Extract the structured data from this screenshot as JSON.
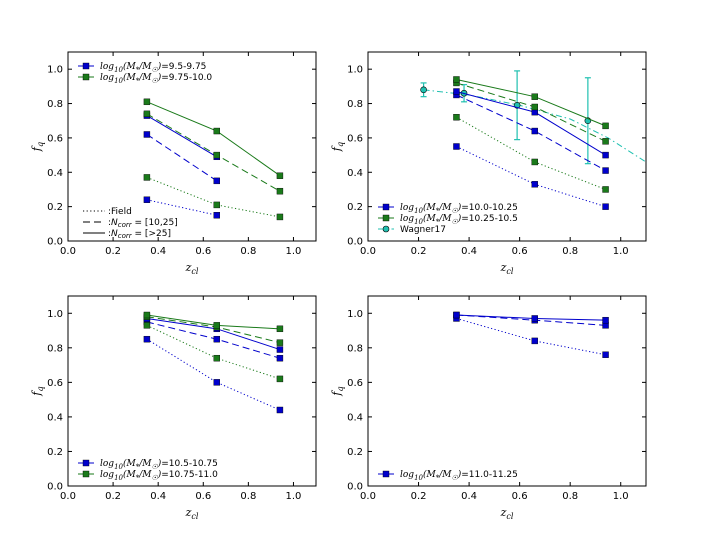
{
  "colors": {
    "blue": "#0000cc",
    "green": "#1a7a1a",
    "cyan": "#20c0b0",
    "axis": "#000000"
  },
  "chart_data": [
    {
      "type": "line",
      "panel": "top-left",
      "xlabel": "z_cl",
      "ylabel": "f_q",
      "xlim": [
        0.0,
        1.1
      ],
      "ylim": [
        0.0,
        1.1
      ],
      "xticks": [
        0.0,
        0.2,
        0.4,
        0.6,
        0.8,
        1.0
      ],
      "yticks": [
        0.0,
        0.2,
        0.4,
        0.6,
        0.8,
        1.0
      ],
      "x": [
        0.35,
        0.66,
        0.94
      ],
      "series": [
        {
          "name": "log10(M*/M☉)=9.5-9.75",
          "color": "blue",
          "style": "dotted",
          "values": [
            0.24,
            0.15,
            null
          ]
        },
        {
          "name": "log10(M*/M☉)=9.5-9.75",
          "color": "blue",
          "style": "dashed",
          "values": [
            0.62,
            0.35,
            null
          ]
        },
        {
          "name": "log10(M*/M☉)=9.5-9.75",
          "color": "blue",
          "style": "solid",
          "values": [
            0.73,
            0.49,
            null
          ]
        },
        {
          "name": "log10(M*/M☉)=9.75-10.0",
          "color": "green",
          "style": "dotted",
          "values": [
            0.37,
            0.21,
            0.14
          ]
        },
        {
          "name": "log10(M*/M☉)=9.75-10.0",
          "color": "green",
          "style": "dashed",
          "values": [
            0.74,
            0.5,
            0.29
          ]
        },
        {
          "name": "log10(M*/M☉)=9.75-10.0",
          "color": "green",
          "style": "solid",
          "values": [
            0.81,
            0.64,
            0.38
          ]
        }
      ],
      "legend": {
        "position": "top-left",
        "entries": [
          {
            "color": "blue",
            "math": "log10(M*/M☉)",
            "text": "=9.5-9.75"
          },
          {
            "color": "green",
            "math": "log10(M*/M☉)",
            "text": "=9.75-10.0"
          }
        ]
      },
      "style_legend": {
        "position": "bottom-left",
        "entries": [
          {
            "style": "dotted",
            "text": ":Field"
          },
          {
            "style": "dashed",
            "text": ":N_corr = [10,25]"
          },
          {
            "style": "solid",
            "text": ":N_corr = [>25]"
          }
        ]
      }
    },
    {
      "type": "line",
      "panel": "top-right",
      "xlabel": "z_cl",
      "ylabel": "f_q",
      "xlim": [
        0.0,
        1.1
      ],
      "ylim": [
        0.0,
        1.1
      ],
      "xticks": [
        0.0,
        0.2,
        0.4,
        0.6,
        0.8,
        1.0
      ],
      "yticks": [
        0.0,
        0.2,
        0.4,
        0.6,
        0.8,
        1.0
      ],
      "x": [
        0.35,
        0.66,
        0.94
      ],
      "series": [
        {
          "name": "log10(M*/M☉)=10.0-10.25",
          "color": "blue",
          "style": "dotted",
          "values": [
            0.55,
            0.33,
            0.2
          ]
        },
        {
          "name": "log10(M*/M☉)=10.0-10.25",
          "color": "blue",
          "style": "dashed",
          "values": [
            0.85,
            0.64,
            0.41
          ]
        },
        {
          "name": "log10(M*/M☉)=10.0-10.25",
          "color": "blue",
          "style": "solid",
          "values": [
            0.87,
            0.75,
            0.5
          ]
        },
        {
          "name": "log10(M*/M☉)=10.25-10.5",
          "color": "green",
          "style": "dotted",
          "values": [
            0.72,
            0.46,
            0.3
          ]
        },
        {
          "name": "log10(M*/M☉)=10.25-10.5",
          "color": "green",
          "style": "dashed",
          "values": [
            0.92,
            0.78,
            0.58
          ]
        },
        {
          "name": "log10(M*/M☉)=10.25-10.5",
          "color": "green",
          "style": "solid",
          "values": [
            0.94,
            0.84,
            0.67
          ]
        }
      ],
      "reference": {
        "name": "Wagner17",
        "color": "cyan",
        "points": [
          {
            "x": 0.22,
            "y": 0.88,
            "err": 0.04
          },
          {
            "x": 0.38,
            "y": 0.86,
            "err": 0.05
          },
          {
            "x": 0.59,
            "y": 0.79,
            "err": 0.2
          },
          {
            "x": 0.87,
            "y": 0.7,
            "err": 0.25
          }
        ],
        "curve_x": [
          0.22,
          0.4,
          0.6,
          0.8,
          0.95,
          1.1
        ],
        "curve_y": [
          0.88,
          0.85,
          0.79,
          0.71,
          0.6,
          0.46
        ]
      },
      "legend": {
        "position": "bottom-left",
        "entries": [
          {
            "color": "blue",
            "math": "log10(M*/M☉)",
            "text": "=10.0-10.25"
          },
          {
            "color": "green",
            "math": "log10(M*/M☉)",
            "text": "=10.25-10.5"
          },
          {
            "color": "cyan",
            "math": "",
            "text": "Wagner17"
          }
        ]
      }
    },
    {
      "type": "line",
      "panel": "bottom-left",
      "xlabel": "z_cl",
      "ylabel": "f_q",
      "xlim": [
        0.0,
        1.1
      ],
      "ylim": [
        0.0,
        1.1
      ],
      "xticks": [
        0.0,
        0.2,
        0.4,
        0.6,
        0.8,
        1.0
      ],
      "yticks": [
        0.0,
        0.2,
        0.4,
        0.6,
        0.8,
        1.0
      ],
      "x": [
        0.35,
        0.66,
        0.94
      ],
      "series": [
        {
          "name": "log10(M*/M☉)=10.5-10.75",
          "color": "blue",
          "style": "dotted",
          "values": [
            0.85,
            0.6,
            0.44
          ]
        },
        {
          "name": "log10(M*/M☉)=10.5-10.75",
          "color": "blue",
          "style": "dashed",
          "values": [
            0.95,
            0.85,
            0.74
          ]
        },
        {
          "name": "log10(M*/M☉)=10.5-10.75",
          "color": "blue",
          "style": "solid",
          "values": [
            0.97,
            0.91,
            0.79
          ]
        },
        {
          "name": "log10(M*/M☉)=10.75-11.0",
          "color": "green",
          "style": "dotted",
          "values": [
            0.93,
            0.74,
            0.62
          ]
        },
        {
          "name": "log10(M*/M☉)=10.75-11.0",
          "color": "green",
          "style": "dashed",
          "values": [
            0.98,
            0.92,
            0.83
          ]
        },
        {
          "name": "log10(M*/M☉)=10.75-11.0",
          "color": "green",
          "style": "solid",
          "values": [
            0.99,
            0.93,
            0.91
          ]
        }
      ],
      "legend": {
        "position": "bottom-left",
        "entries": [
          {
            "color": "blue",
            "math": "log10(M*/M☉)",
            "text": "=10.5-10.75"
          },
          {
            "color": "green",
            "math": "log10(M*/M☉)",
            "text": "=10.75-11.0"
          }
        ]
      }
    },
    {
      "type": "line",
      "panel": "bottom-right",
      "xlabel": "z_cl",
      "ylabel": "f_q",
      "xlim": [
        0.0,
        1.1
      ],
      "ylim": [
        0.0,
        1.1
      ],
      "xticks": [
        0.0,
        0.2,
        0.4,
        0.6,
        0.8,
        1.0
      ],
      "yticks": [
        0.0,
        0.2,
        0.4,
        0.6,
        0.8,
        1.0
      ],
      "x": [
        0.35,
        0.66,
        0.94
      ],
      "series": [
        {
          "name": "log10(M*/M☉)=11.0-11.25",
          "color": "blue",
          "style": "dotted",
          "values": [
            0.97,
            0.84,
            0.76
          ]
        },
        {
          "name": "log10(M*/M☉)=11.0-11.25",
          "color": "blue",
          "style": "dashed",
          "values": [
            0.99,
            0.96,
            0.93
          ]
        },
        {
          "name": "log10(M*/M☉)=11.0-11.25",
          "color": "blue",
          "style": "solid",
          "values": [
            0.99,
            0.97,
            0.96
          ]
        }
      ],
      "legend": {
        "position": "bottom-left",
        "entries": [
          {
            "color": "blue",
            "math": "log10(M*/M☉)",
            "text": "=11.0-11.25"
          }
        ]
      }
    }
  ]
}
